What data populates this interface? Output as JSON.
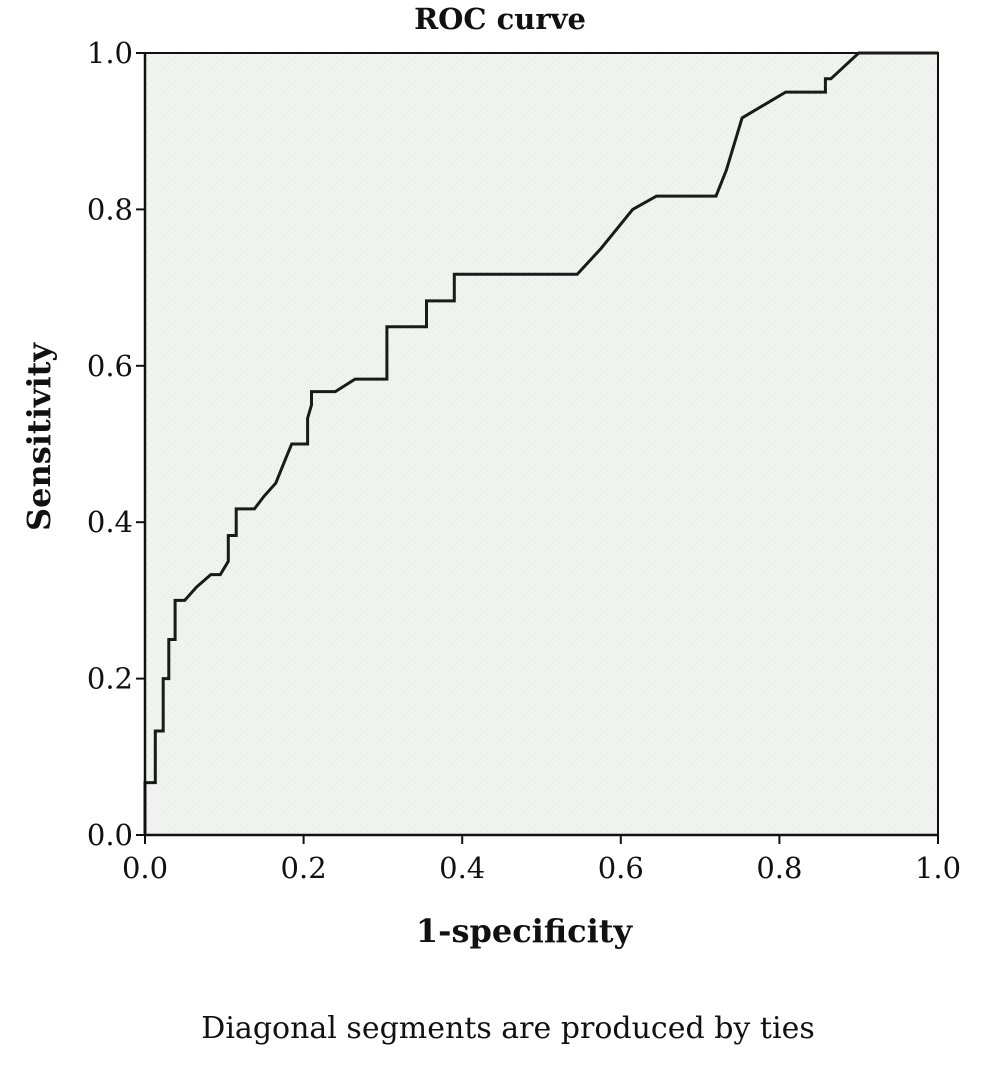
{
  "chart_data": {
    "type": "line",
    "title": "ROC curve",
    "xlabel": "1-specificity",
    "ylabel": "Sensitivity",
    "xlim": [
      0,
      1
    ],
    "ylim": [
      0,
      1
    ],
    "x_ticks": [
      "0.0",
      "0.2",
      "0.4",
      "0.6",
      "0.8",
      "1.0"
    ],
    "y_ticks": [
      "0.0",
      "0.2",
      "0.4",
      "0.6",
      "0.8",
      "1.0"
    ],
    "grid": false,
    "legend": "none",
    "series": [
      {
        "x": [
          0.0,
          0.0,
          0.013,
          0.013,
          0.023,
          0.023,
          0.03,
          0.03,
          0.038,
          0.038,
          0.05,
          0.05,
          0.065,
          0.083,
          0.095,
          0.105,
          0.105,
          0.115,
          0.115,
          0.138,
          0.15,
          0.165,
          0.178,
          0.185,
          0.205,
          0.205,
          0.21,
          0.21,
          0.24,
          0.265,
          0.28,
          0.3,
          0.305,
          0.305,
          0.315,
          0.35,
          0.355,
          0.355,
          0.385,
          0.39,
          0.39,
          0.545,
          0.575,
          0.615,
          0.645,
          0.72,
          0.733,
          0.753,
          0.808,
          0.858,
          0.858,
          0.865,
          0.9,
          1.0
        ],
        "y": [
          0.0,
          0.067,
          0.067,
          0.133,
          0.133,
          0.2,
          0.2,
          0.25,
          0.25,
          0.3,
          0.3,
          0.3,
          0.317,
          0.333,
          0.333,
          0.35,
          0.383,
          0.383,
          0.417,
          0.417,
          0.433,
          0.45,
          0.483,
          0.5,
          0.5,
          0.533,
          0.55,
          0.567,
          0.567,
          0.583,
          0.583,
          0.583,
          0.583,
          0.65,
          0.65,
          0.65,
          0.65,
          0.683,
          0.683,
          0.683,
          0.717,
          0.717,
          0.75,
          0.8,
          0.817,
          0.817,
          0.85,
          0.917,
          0.95,
          0.95,
          0.967,
          0.967,
          1.0,
          1.0
        ],
        "color": "#1a1a1a"
      }
    ],
    "plot_background": "#f1f3f1",
    "axis_color": "#111111"
  },
  "footnote": "Diagonal segments are produced by ties"
}
